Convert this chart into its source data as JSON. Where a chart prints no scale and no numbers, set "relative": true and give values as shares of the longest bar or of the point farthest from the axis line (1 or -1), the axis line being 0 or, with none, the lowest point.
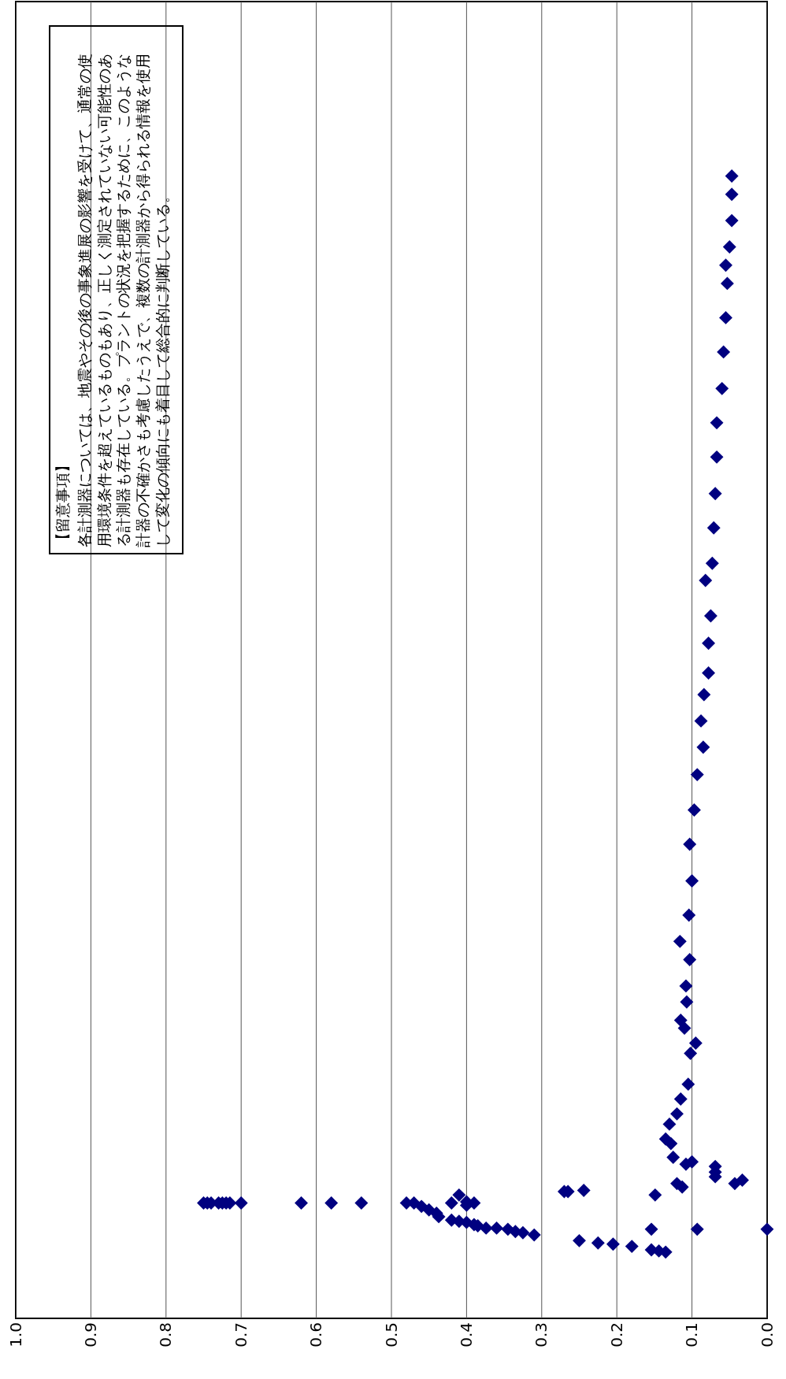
{
  "chart_data": {
    "type": "scatter",
    "x": [
      0.75,
      0.745,
      0.74,
      0.73,
      0.725,
      0.72,
      0.715,
      0.7,
      0.62,
      0.58,
      0.54,
      0.48,
      0.47,
      0.46,
      0.45,
      0.44,
      0.437,
      0.42,
      0.41,
      0.4,
      0.39,
      0.385,
      0.374,
      0.36,
      0.345,
      0.335,
      0.325,
      0.31,
      0.41,
      0.42,
      0.4,
      0.39,
      0.4,
      0.27,
      0.265,
      0.244,
      0.25,
      0.225,
      0.205,
      0.18,
      0.154,
      0.144,
      0.135,
      0.154,
      0.149,
      0.093,
      0.0,
      0.12,
      0.113,
      0.069,
      0.069,
      0.069,
      0.043,
      0.033,
      0.108,
      0.1,
      0.125,
      0.128,
      0.135,
      0.13,
      0.12,
      0.115,
      0.105,
      0.102,
      0.095,
      0.11,
      0.115,
      0.107,
      0.108,
      0.103,
      0.116,
      0.104,
      0.1,
      0.103,
      0.097,
      0.093,
      0.085,
      0.088,
      0.084,
      0.078,
      0.078,
      0.075,
      0.082,
      0.073,
      0.071,
      0.069,
      0.067,
      0.067,
      0.06,
      0.058,
      0.055,
      0.053,
      0.055,
      0.05,
      0.047,
      0.047,
      0.047
    ],
    "values": [
      0.101,
      0.101,
      0.101,
      0.101,
      0.101,
      0.101,
      0.101,
      0.101,
      0.101,
      0.101,
      0.101,
      0.101,
      0.101,
      0.098,
      0.095,
      0.092,
      0.089,
      0.086,
      0.085,
      0.084,
      0.082,
      0.081,
      0.079,
      0.079,
      0.078,
      0.076,
      0.075,
      0.073,
      0.108,
      0.101,
      0.102,
      0.101,
      0.099,
      0.111,
      0.111,
      0.112,
      0.068,
      0.066,
      0.065,
      0.063,
      0.06,
      0.059,
      0.058,
      0.078,
      0.108,
      0.078,
      0.078,
      0.118,
      0.115,
      0.124,
      0.128,
      0.133,
      0.118,
      0.121,
      0.135,
      0.137,
      0.141,
      0.153,
      0.157,
      0.17,
      0.179,
      0.192,
      0.205,
      0.232,
      0.241,
      0.254,
      0.261,
      0.277,
      0.291,
      0.314,
      0.33,
      0.353,
      0.383,
      0.415,
      0.445,
      0.476,
      0.5,
      0.523,
      0.546,
      0.565,
      0.591,
      0.615,
      0.646,
      0.661,
      0.692,
      0.722,
      0.754,
      0.784,
      0.814,
      0.846,
      0.876,
      0.906,
      0.922,
      0.938,
      0.961,
      0.984,
      1
    ],
    "relative": true,
    "color": "#000080",
    "marker": "diamond",
    "xlim": [
      1,
      0
    ],
    "xticks": [
      {
        "value": 0,
        "label": "0.0"
      },
      {
        "value": 0.1,
        "label": "0.1"
      },
      {
        "value": 0.2,
        "label": "0.2"
      },
      {
        "value": 0.3,
        "label": "0.3"
      },
      {
        "value": 0.4,
        "label": "0.4"
      },
      {
        "value": 0.5,
        "label": "0.5"
      },
      {
        "value": 0.6,
        "label": "0.6"
      },
      {
        "value": 0.7,
        "label": "0.7"
      },
      {
        "value": 0.8,
        "label": "0.8"
      },
      {
        "value": 0.9,
        "label": "0.9"
      },
      {
        "value": 1,
        "label": "1.0"
      }
    ],
    "grid": "x",
    "tick_labels": "x",
    "annotations": [
      "【留意事項】",
      "各計測器については、地震やその後の事象進展の影響を受けて、通常の使用環境条件を超えているものもあり、正しく測定されていない可能性のある計測器も存在している。プラントの状況を把握するために、このような計器の不確かさも考慮したうえで、複数の計測器から得られる情報を使用して変化の傾向にも着目して総合的に判断している。"
    ]
  }
}
